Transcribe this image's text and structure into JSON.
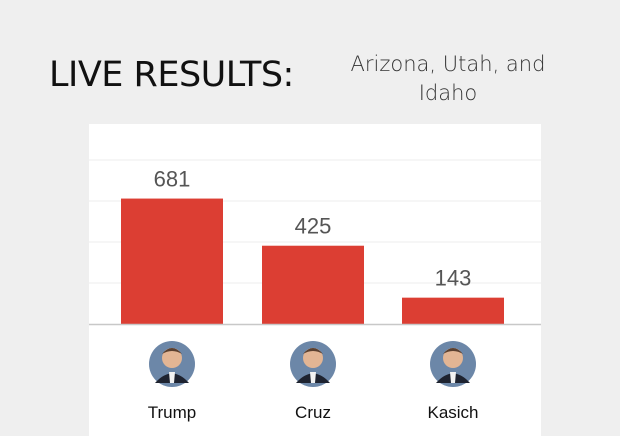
{
  "header": {
    "title": "LIVE RESULTS:",
    "subtitle": "Arizona, Utah, and Idaho"
  },
  "chart_data": {
    "type": "bar",
    "categories": [
      "Trump",
      "Cruz",
      "Kasich"
    ],
    "values": [
      681,
      425,
      143
    ],
    "ylim": [
      0,
      800
    ],
    "grid": true,
    "bar_color": "#dc3e33",
    "category_icons": [
      "candidate-photo-icon",
      "candidate-photo-icon",
      "candidate-photo-icon"
    ]
  }
}
